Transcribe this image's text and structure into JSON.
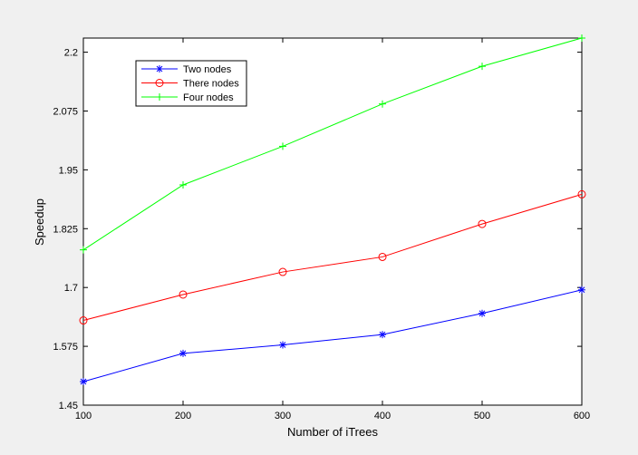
{
  "chart_data": {
    "type": "line",
    "title": "",
    "xlabel": "Number of iTrees",
    "ylabel": "Speedup",
    "x": [
      100,
      200,
      300,
      400,
      500,
      600
    ],
    "xlim": [
      100,
      600
    ],
    "ylim": [
      1.45,
      2.23
    ],
    "xticks": [
      "100",
      "200",
      "300",
      "400",
      "500",
      "600"
    ],
    "yticks": [
      "1.45",
      "1.575",
      "1.7",
      "1.825",
      "1.95",
      "2.075",
      "2.2"
    ],
    "ytick_values": [
      1.45,
      1.575,
      1.7,
      1.825,
      1.95,
      2.075,
      2.2
    ],
    "grid": false,
    "legend_position": "top-left",
    "series": [
      {
        "name": "Two nodes",
        "color": "#0000ff",
        "marker": "star",
        "values": [
          1.5,
          1.56,
          1.578,
          1.6,
          1.645,
          1.695
        ]
      },
      {
        "name": "There nodes",
        "color": "#ff0000",
        "marker": "circle",
        "values": [
          1.63,
          1.685,
          1.733,
          1.765,
          1.835,
          1.898
        ]
      },
      {
        "name": "Four nodes",
        "color": "#00ff00",
        "marker": "plus",
        "values": [
          1.78,
          1.918,
          2.0,
          2.09,
          2.17,
          2.23
        ]
      }
    ]
  }
}
